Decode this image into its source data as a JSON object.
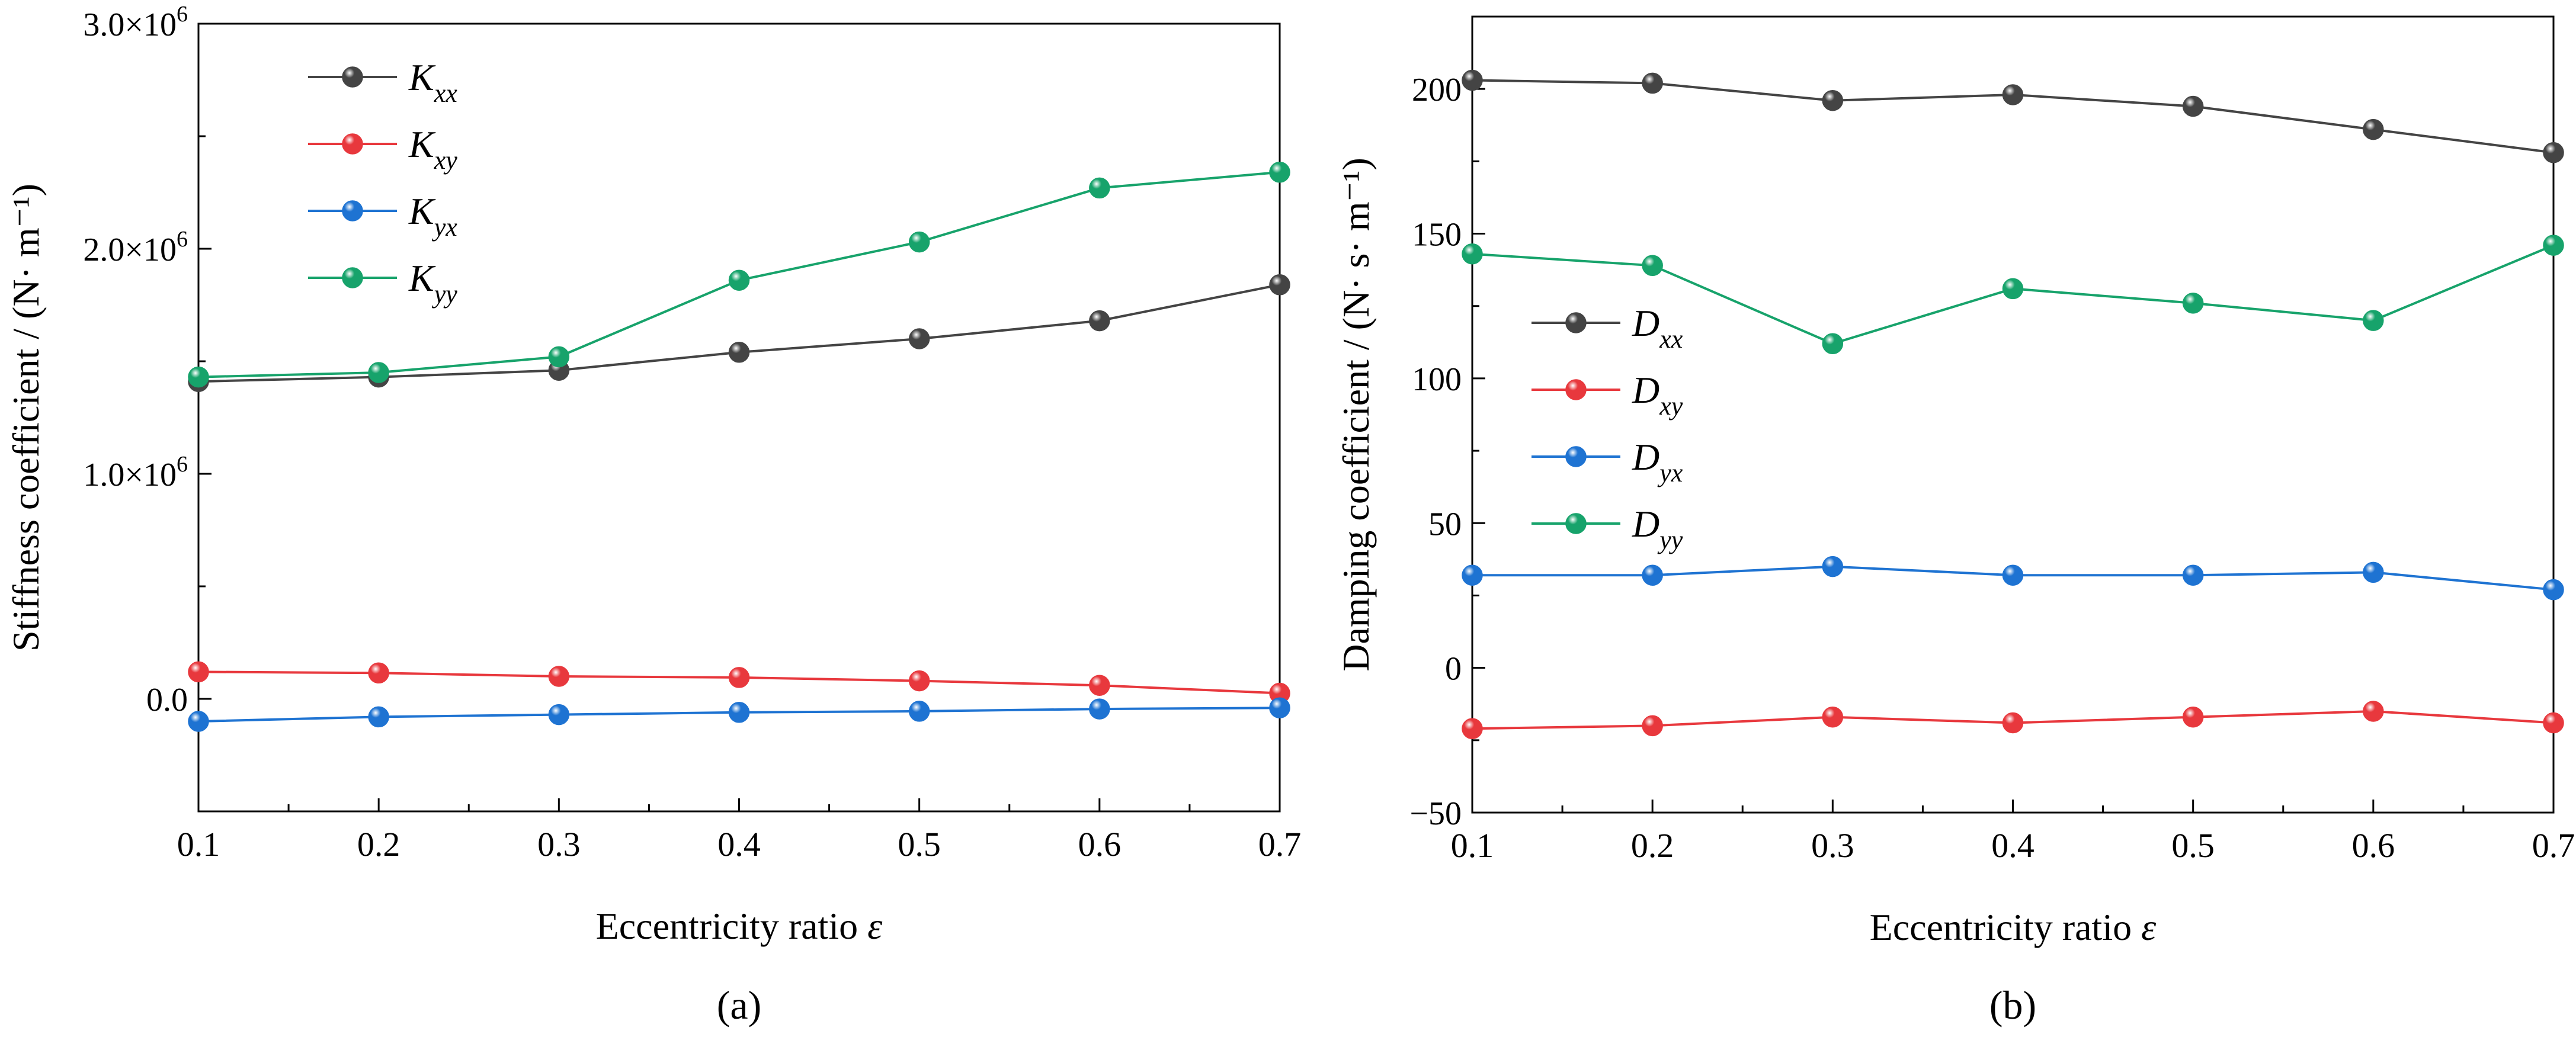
{
  "chart_data": [
    {
      "type": "line",
      "panel_label": "(a)",
      "xlabel": "Eccentricity ratio ε",
      "ylabel": "Stiffness coefficient / (N· m⁻¹)",
      "x": [
        0.1,
        0.2,
        0.3,
        0.4,
        0.5,
        0.6,
        0.7
      ],
      "xlim": [
        0.1,
        0.7
      ],
      "ylim": [
        -500000,
        3000000
      ],
      "xticks": [
        "0.1",
        "0.2",
        "0.3",
        "0.4",
        "0.5",
        "0.6",
        "0.7"
      ],
      "yticks": [
        {
          "value": 0,
          "label": "0.0"
        },
        {
          "value": 1000000,
          "label": "1.0×10",
          "exp": "6"
        },
        {
          "value": 2000000,
          "label": "2.0×10",
          "exp": "6"
        },
        {
          "value": 3000000,
          "label": "3.0×10",
          "exp": "6"
        }
      ],
      "legend_position": "top-left",
      "series": [
        {
          "name": "K",
          "sub": "xx",
          "color": "#444444",
          "values": [
            1410000,
            1430000,
            1460000,
            1540000,
            1600000,
            1680000,
            1840000
          ]
        },
        {
          "name": "K",
          "sub": "xy",
          "color": "#e8383d",
          "values": [
            120000,
            115000,
            100000,
            95000,
            80000,
            60000,
            25000
          ]
        },
        {
          "name": "K",
          "sub": "yx",
          "color": "#1e73d2",
          "values": [
            -100000,
            -80000,
            -70000,
            -60000,
            -55000,
            -45000,
            -40000
          ]
        },
        {
          "name": "K",
          "sub": "yy",
          "color": "#17a36b",
          "values": [
            1430000,
            1450000,
            1520000,
            1860000,
            2030000,
            2270000,
            2340000
          ]
        }
      ]
    },
    {
      "type": "line",
      "panel_label": "(b)",
      "xlabel": "Eccentricity ratio ε",
      "ylabel": "Damping coefficient / (N· s· m⁻¹)",
      "x": [
        0.1,
        0.2,
        0.3,
        0.4,
        0.5,
        0.6,
        0.7
      ],
      "xlim": [
        0.1,
        0.7
      ],
      "ylim": [
        -50,
        225
      ],
      "xticks": [
        "0.1",
        "0.2",
        "0.3",
        "0.4",
        "0.5",
        "0.6",
        "0.7"
      ],
      "yticks": [
        {
          "value": -50,
          "label": "−50"
        },
        {
          "value": 0,
          "label": "0"
        },
        {
          "value": 50,
          "label": "50"
        },
        {
          "value": 100,
          "label": "100"
        },
        {
          "value": 150,
          "label": "150"
        },
        {
          "value": 200,
          "label": "200"
        }
      ],
      "legend_position": "center-left",
      "series": [
        {
          "name": "D",
          "sub": "xx",
          "color": "#444444",
          "values": [
            203,
            202,
            196,
            198,
            194,
            186,
            178
          ]
        },
        {
          "name": "D",
          "sub": "xy",
          "color": "#e8383d",
          "values": [
            -21,
            -20,
            -17,
            -19,
            -17,
            -15,
            -19
          ]
        },
        {
          "name": "D",
          "sub": "yx",
          "color": "#1e73d2",
          "values": [
            32,
            32,
            35,
            32,
            32,
            33,
            27
          ]
        },
        {
          "name": "D",
          "sub": "yy",
          "color": "#17a36b",
          "values": [
            143,
            139,
            112,
            131,
            126,
            120,
            146
          ]
        }
      ]
    }
  ]
}
